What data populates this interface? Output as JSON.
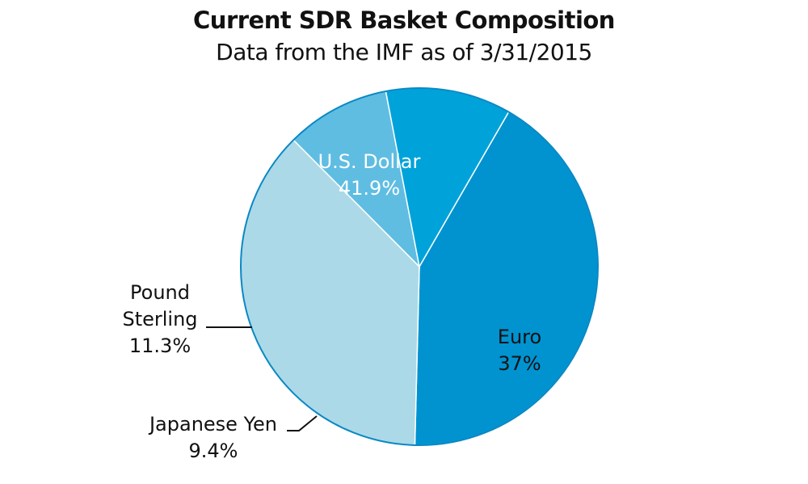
{
  "chart_data": {
    "type": "pie",
    "title": "Current SDR Basket Composition",
    "subtitle": "Data from the IMF as of 3/31/2015",
    "slices": [
      {
        "label": "U.S. Dollar",
        "value": 41.9,
        "display": "41.9%",
        "color": "#0093d0",
        "text_color": "#ffffff"
      },
      {
        "label": "Euro",
        "value": 37,
        "display": "37%",
        "color": "#acd9e8",
        "text_color": "#111111"
      },
      {
        "label": "Japanese Yen",
        "value": 9.4,
        "display": "9.4%",
        "color": "#5fbde2",
        "text_color": "#111111"
      },
      {
        "label": "Pound Sterling",
        "label_lines": [
          "Pound",
          "Sterling"
        ],
        "value": 11.3,
        "display": "11.3%",
        "color": "#00a3d9",
        "text_color": "#111111"
      }
    ]
  }
}
